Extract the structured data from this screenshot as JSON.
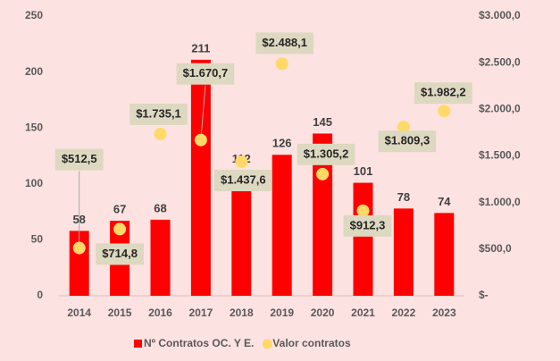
{
  "chart_data": {
    "type": "bar+scatter",
    "categories": [
      "2014",
      "2015",
      "2016",
      "2017",
      "2018",
      "2019",
      "2020",
      "2021",
      "2022",
      "2023"
    ],
    "series": [
      {
        "name": "Nº Contratos OC. Y E.",
        "type": "bar",
        "color": "#ff0000",
        "axis": "y",
        "values": [
          58,
          67,
          68,
          211,
          112,
          126,
          145,
          101,
          78,
          74
        ]
      },
      {
        "name": "Valor contratos",
        "type": "scatter",
        "color": "#ffd966",
        "axis": "y2",
        "values": [
          512.5,
          714.8,
          1735.1,
          1670.7,
          1437.6,
          2488.1,
          1305.2,
          912.3,
          1809.3,
          1982.2
        ],
        "value_labels": [
          "$512,5",
          "$714,8",
          "$1.735,1",
          "$1.670,7",
          "$1.437,6",
          "$2.488,1",
          "$1.305,2",
          "$912,3",
          "$1.809,3",
          "$1.982,2"
        ]
      }
    ],
    "ylim": [
      0,
      250
    ],
    "yticks": [
      0,
      50,
      100,
      150,
      200,
      250
    ],
    "y2lim": [
      0,
      3000
    ],
    "y2ticks": [
      {
        "value": 0,
        "label": "$-"
      },
      {
        "value": 500,
        "label": "$500,0"
      },
      {
        "value": 1000,
        "label": "$1.000,0"
      },
      {
        "value": 1500,
        "label": "$1.500,0"
      },
      {
        "value": 2000,
        "label": "$2.000,0"
      },
      {
        "value": 2500,
        "label": "$2.500,0"
      },
      {
        "value": 3000,
        "label": "$3.000,0"
      }
    ],
    "grid": false,
    "legend": "bottom"
  }
}
